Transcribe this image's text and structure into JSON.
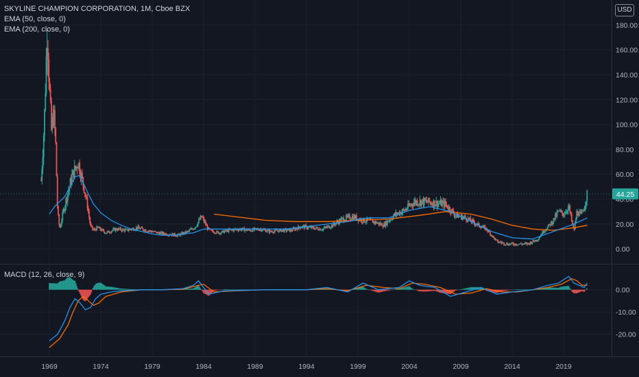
{
  "header": {
    "title": "SKYLINE CHAMPION CORPORATION, 1M, Cboe BZX",
    "ema50_label": "EMA (50, close, 0)",
    "ema200_label": "EMA (200, close, 0)",
    "macd_label": "MACD (12, 26, close, 9)",
    "currency": "USD"
  },
  "colors": {
    "background": "#131722",
    "grid": "#1e222d",
    "up_candle": "#26a69a",
    "down_candle": "#ef5350",
    "ema50": "#2196f3",
    "ema200": "#ff6d00",
    "macd_line": "#2196f3",
    "signal_line": "#ff6d00",
    "last_price_badge": "#26a69a"
  },
  "chart_data": {
    "type": "line",
    "title": "SKYLINE CHAMPION CORPORATION, 1M, Cboe BZX",
    "x_ticks": [
      "1969",
      "1974",
      "1979",
      "1984",
      "1989",
      "1994",
      "1999",
      "2004",
      "2009",
      "2014",
      "2019"
    ],
    "price_axis": {
      "ticks": [
        "0.00",
        "20.00",
        "40.00",
        "60.00",
        "80.00",
        "100.00",
        "120.00",
        "140.00",
        "160.00",
        "180.00"
      ],
      "ylim": [
        -12,
        200
      ]
    },
    "last_price": "44.25",
    "price": {
      "name": "",
      "x": [
        1968.2,
        1968.5,
        1968.8,
        1969.0,
        1969.2,
        1969.4,
        1969.6,
        1969.8,
        1970.0,
        1970.3,
        1970.7,
        1971.2,
        1971.8,
        1972.3,
        1972.7,
        1973.0,
        1973.3,
        1973.7,
        1974.5,
        1975.5,
        1976.5,
        1977.5,
        1978.5,
        1979.5,
        1980.5,
        1981.5,
        1982.5,
        1983.2,
        1983.8,
        1984.5,
        1985.5,
        1986.5,
        1987.5,
        1988.5,
        1989.5,
        1990.5,
        1991.5,
        1992.5,
        1993.5,
        1994.5,
        1995.5,
        1996.5,
        1997.5,
        1998.5,
        1999.5,
        2000.5,
        2001.5,
        2002.5,
        2003.5,
        2004.5,
        2005.5,
        2006.5,
        2007.5,
        2008.5,
        2009.5,
        2010.5,
        2011.5,
        2012.5,
        2013.5,
        2014.5,
        2015.5,
        2016.5,
        2017.0,
        2017.5,
        2018.0,
        2018.5,
        2019.0,
        2019.5,
        2020.0,
        2020.3,
        2020.7,
        2021.0,
        2021.3
      ],
      "values": [
        55,
        100,
        180,
        130,
        95,
        110,
        88,
        30,
        16,
        28,
        42,
        58,
        70,
        52,
        35,
        18,
        15,
        17,
        13,
        16,
        15,
        17,
        15,
        13,
        12,
        11,
        14,
        18,
        26,
        15,
        13,
        15,
        16,
        15,
        16,
        14,
        15,
        15,
        18,
        17,
        16,
        19,
        24,
        26,
        23,
        22,
        19,
        27,
        31,
        38,
        38,
        37,
        36,
        27,
        25,
        20,
        16,
        6,
        4,
        4,
        4,
        8,
        14,
        18,
        23,
        30,
        28,
        34,
        14,
        30,
        27,
        34,
        44
      ]
    },
    "ema50": {
      "name": "",
      "x": [
        1969.0,
        1969.5,
        1970.0,
        1970.5,
        1971.0,
        1971.5,
        1971.9,
        1972.3,
        1972.8,
        1973.3,
        1974.0,
        1975.0,
        1976.0,
        1977.0,
        1978.0,
        1979.0,
        1980.0,
        1981.0,
        1982.0,
        1983.0,
        1984.0,
        1986.0,
        1988.0,
        1990.0,
        1992.0,
        1994.0,
        1996.0,
        1998.0,
        2000.0,
        2002.0,
        2004.0,
        2006.0,
        2008.0,
        2010.0,
        2012.0,
        2014.0,
        2016.0,
        2018.0,
        2020.0,
        2021.3
      ],
      "values": [
        28,
        34,
        38,
        42,
        50,
        58,
        59,
        53,
        44,
        36,
        29,
        23,
        19,
        16,
        14,
        12,
        11,
        11,
        12,
        13,
        16,
        16,
        16,
        16,
        16,
        18,
        20,
        22,
        25,
        25,
        31,
        34,
        30,
        22,
        14,
        9,
        8,
        14,
        20,
        25
      ]
    },
    "ema200": {
      "name": "",
      "x": [
        1985.0,
        1987.0,
        1990.0,
        1993.0,
        1996.0,
        1999.0,
        2002.0,
        2005.0,
        2007.5,
        2010.0,
        2012.0,
        2014.0,
        2016.0,
        2018.0,
        2020.0,
        2021.3
      ],
      "values": [
        28,
        26,
        23,
        22,
        22,
        23,
        24,
        27,
        30,
        28,
        24,
        19,
        16,
        15,
        17,
        19
      ]
    },
    "macd_axis": {
      "ticks": [
        "0.00",
        "-10.00",
        "-20.00"
      ],
      "ylim": [
        -30,
        11
      ]
    },
    "macd_line": {
      "name": "",
      "x": [
        1969.0,
        1969.8,
        1970.5,
        1971.0,
        1971.5,
        1972.0,
        1972.5,
        1973.0,
        1973.5,
        1974.0,
        1975.0,
        1976.0,
        1978.0,
        1980.0,
        1982.0,
        1983.0,
        1983.5,
        1984.5,
        1986.0,
        1990.0,
        1994.0,
        1996.0,
        1998.0,
        1999.5,
        2001.0,
        2003.0,
        2004.0,
        2005.0,
        2006.5,
        2008.0,
        2009.5,
        2011.0,
        2012.5,
        2014.0,
        2016.0,
        2017.5,
        2018.5,
        2019.5,
        2020.0,
        2020.5,
        2021.0,
        2021.3
      ],
      "values": [
        -23,
        -20,
        -14,
        -8,
        -4,
        -6,
        -9,
        -8,
        -4,
        -2,
        -1,
        -0.5,
        0,
        0,
        0.5,
        2,
        4,
        -2,
        -0.5,
        0,
        0,
        1,
        -1,
        3,
        0,
        1,
        4,
        2,
        1,
        -3,
        -1,
        1,
        -2,
        -1,
        0,
        2,
        3,
        6,
        3,
        2,
        1,
        3
      ]
    },
    "signal_line": {
      "name": "",
      "x": [
        1969.0,
        1970.0,
        1970.8,
        1971.3,
        1971.8,
        1972.3,
        1972.8,
        1973.3,
        1973.8,
        1974.5,
        1976.0,
        1978.0,
        1980.0,
        1982.0,
        1983.5,
        1984.0,
        1985.0,
        1987.0,
        1990.0,
        1994.0,
        1996.0,
        1998.0,
        1999.8,
        2001.5,
        2003.0,
        2004.3,
        2005.5,
        2007.0,
        2008.5,
        2010.0,
        2011.5,
        2013.0,
        2014.5,
        2016.0,
        2017.5,
        2018.8,
        2019.8,
        2020.3,
        2020.8,
        2021.3
      ],
      "values": [
        -26,
        -22,
        -16,
        -10,
        -5,
        -3,
        -5,
        -7,
        -6,
        -3,
        -1,
        0,
        0,
        0.2,
        2,
        2.5,
        -1,
        -0.5,
        0,
        0,
        0.5,
        -0.5,
        2,
        1,
        0.5,
        3,
        2.5,
        1,
        -2,
        -1.5,
        0.5,
        -1,
        -1,
        0,
        1,
        2.5,
        5,
        4,
        2,
        2
      ]
    }
  }
}
